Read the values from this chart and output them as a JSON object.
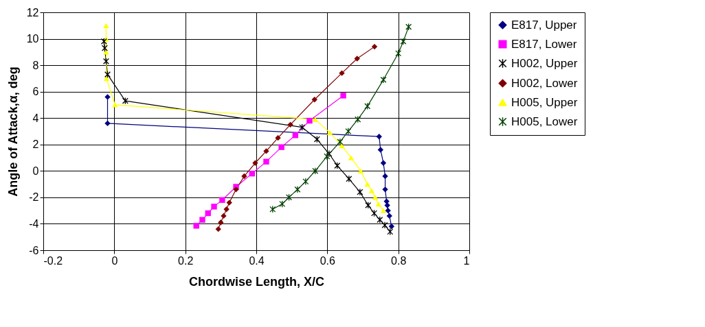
{
  "chart_data": {
    "type": "line",
    "xlabel": "Chordwise Length, X/C",
    "ylabel": "Angle of Attack,α, deg",
    "xlim": [
      -0.2,
      1
    ],
    "xticks": [
      -0.2,
      0,
      0.2,
      0.4,
      0.6,
      0.8,
      1
    ],
    "ylim": [
      -6,
      12
    ],
    "yticks": [
      -6,
      -4,
      -2,
      0,
      2,
      4,
      6,
      8,
      10,
      12
    ],
    "grid": true,
    "legend": "right",
    "series": [
      {
        "name": "E817, Upper",
        "color": "#000080",
        "marker": "diamond",
        "x": [
          -0.019,
          -0.019,
          0.746,
          0.75,
          0.758,
          0.763,
          0.763,
          0.767,
          0.769,
          0.771,
          0.775,
          0.781
        ],
        "values": [
          5.6,
          3.6,
          2.6,
          1.6,
          0.6,
          -0.4,
          -1.4,
          -2.3,
          -2.6,
          -3.0,
          -3.4,
          -4.2
        ]
      },
      {
        "name": "E817, Lower",
        "color": "#ff00ff",
        "marker": "square",
        "x": [
          0.231,
          0.248,
          0.264,
          0.281,
          0.304,
          0.343,
          0.388,
          0.428,
          0.471,
          0.51,
          0.55,
          0.645
        ],
        "values": [
          -4.15,
          -3.7,
          -3.2,
          -2.7,
          -2.2,
          -1.2,
          -0.2,
          0.7,
          1.8,
          2.7,
          3.8,
          5.7
        ]
      },
      {
        "name": "H002, Upper",
        "color": "#000000",
        "marker": "cross",
        "x": [
          -0.029,
          -0.027,
          -0.023,
          -0.019,
          0.031,
          0.529,
          0.571,
          0.605,
          0.628,
          0.661,
          0.692,
          0.715,
          0.732,
          0.748,
          0.762,
          0.777
        ],
        "values": [
          9.8,
          9.3,
          8.3,
          7.3,
          5.3,
          3.3,
          2.4,
          1.3,
          0.4,
          -0.6,
          -1.6,
          -2.6,
          -3.2,
          -3.7,
          -4.1,
          -4.6
        ]
      },
      {
        "name": "H002, Lower",
        "color": "#800000",
        "marker": "diamond",
        "x": [
          0.293,
          0.3,
          0.308,
          0.316,
          0.324,
          0.343,
          0.366,
          0.397,
          0.428,
          0.461,
          0.496,
          0.564,
          0.641,
          0.684,
          0.733
        ],
        "values": [
          -4.4,
          -3.9,
          -3.4,
          -2.9,
          -2.4,
          -1.4,
          -0.4,
          0.6,
          1.5,
          2.5,
          3.5,
          5.4,
          7.4,
          8.5,
          9.4
        ]
      },
      {
        "name": "H005, Upper",
        "color": "#ffff00",
        "marker": "triangle",
        "x": [
          -0.023,
          -0.023,
          -0.023,
          -0.022,
          0.002,
          0.566,
          0.607,
          0.641,
          0.667,
          0.694,
          0.713,
          0.725,
          0.735,
          0.744,
          0.758
        ],
        "values": [
          11,
          10,
          9,
          7,
          5,
          3.9,
          2.9,
          1.9,
          1.0,
          0,
          -1.0,
          -1.5,
          -2.0,
          -2.5,
          -3.0
        ]
      },
      {
        "name": "H005, Lower",
        "color": "#004000",
        "marker": "cross",
        "x": [
          0.446,
          0.473,
          0.492,
          0.516,
          0.539,
          0.566,
          0.599,
          0.636,
          0.659,
          0.686,
          0.713,
          0.758,
          0.8,
          0.814,
          0.829
        ],
        "values": [
          -2.9,
          -2.5,
          -2.0,
          -1.4,
          -0.8,
          0,
          1.1,
          2.2,
          3.0,
          3.9,
          4.9,
          6.9,
          8.9,
          9.8,
          10.9
        ]
      }
    ]
  }
}
